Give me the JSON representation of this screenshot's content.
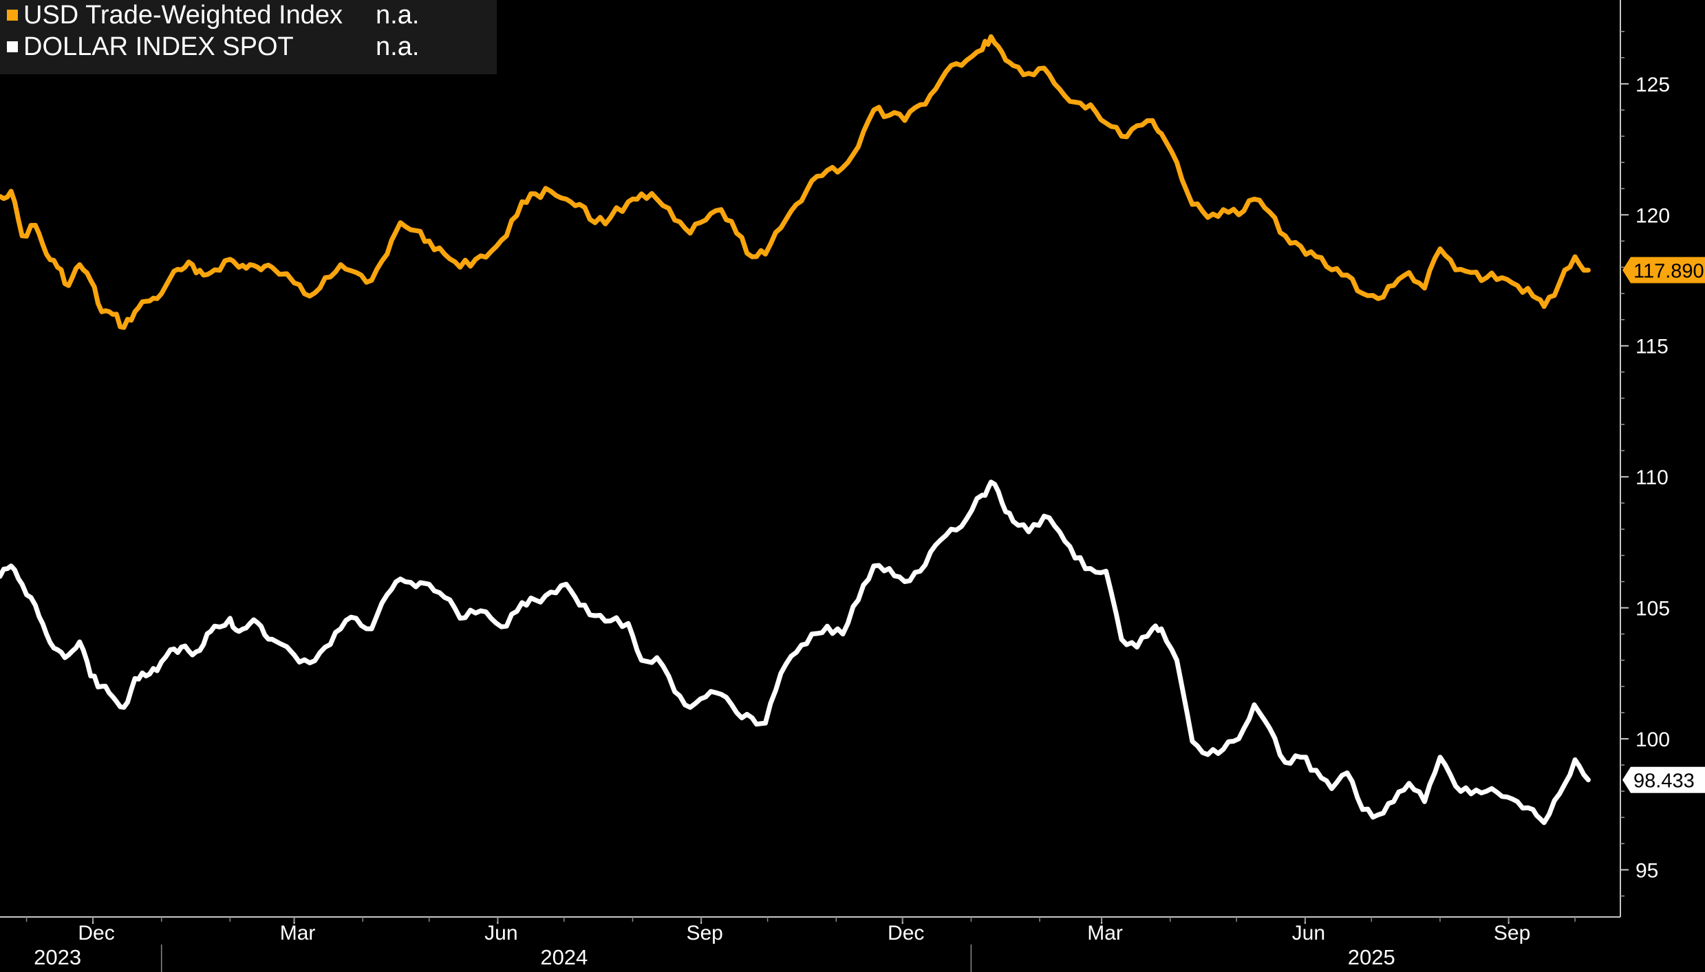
{
  "legend": {
    "items": [
      {
        "label": "USD Trade-Weighted Index",
        "value": "n.a.",
        "color": "#f9a50d"
      },
      {
        "label": "DOLLAR INDEX SPOT",
        "value": "n.a.",
        "color": "#ffffff"
      }
    ]
  },
  "last_value_labels": [
    "117.890",
    "98.433"
  ],
  "chart_data": {
    "type": "line",
    "xlim": [
      "2023-10-20",
      "2025-10-10"
    ],
    "ylim": [
      93.2,
      128.2
    ],
    "y_ticks": [
      95,
      100,
      105,
      110,
      115,
      120,
      125
    ],
    "month_ticks": [
      {
        "label": "Dec",
        "date": "2023-12-01"
      },
      {
        "label": "Mar",
        "date": "2024-03-01"
      },
      {
        "label": "Jun",
        "date": "2024-06-01"
      },
      {
        "label": "Sep",
        "date": "2024-09-01"
      },
      {
        "label": "Dec",
        "date": "2024-12-01"
      },
      {
        "label": "Mar",
        "date": "2025-03-01"
      },
      {
        "label": "Jun",
        "date": "2025-06-01"
      },
      {
        "label": "Sep",
        "date": "2025-09-01"
      }
    ],
    "year_labels": [
      {
        "label": "2023",
        "date": "2023-11-15"
      },
      {
        "label": "2024",
        "date": "2024-07-01"
      },
      {
        "label": "2025",
        "date": "2025-07-01"
      }
    ],
    "year_boundaries": [
      "2024-01-01",
      "2025-01-01"
    ],
    "series": [
      {
        "name": "USD Trade-Weighted Index",
        "color": "#f9a50d",
        "last": 117.89,
        "points": [
          [
            "2023-10-20",
            120.7
          ],
          [
            "2023-10-25",
            120.9
          ],
          [
            "2023-10-30",
            119.2
          ],
          [
            "2023-11-05",
            119.6
          ],
          [
            "2023-11-10",
            118.5
          ],
          [
            "2023-11-15",
            118.0
          ],
          [
            "2023-11-20",
            117.3
          ],
          [
            "2023-11-25",
            118.1
          ],
          [
            "2023-11-30",
            117.5
          ],
          [
            "2023-12-05",
            116.3
          ],
          [
            "2023-12-10",
            116.2
          ],
          [
            "2023-12-15",
            115.7
          ],
          [
            "2023-12-20",
            116.3
          ],
          [
            "2023-12-25",
            116.7
          ],
          [
            "2023-12-30",
            116.8
          ],
          [
            "2024-01-05",
            117.6
          ],
          [
            "2024-01-10",
            117.9
          ],
          [
            "2024-01-15",
            118.1
          ],
          [
            "2024-01-20",
            117.7
          ],
          [
            "2024-01-25",
            117.9
          ],
          [
            "2024-02-01",
            118.3
          ],
          [
            "2024-02-05",
            118.0
          ],
          [
            "2024-02-10",
            118.1
          ],
          [
            "2024-02-15",
            117.9
          ],
          [
            "2024-02-20",
            118.0
          ],
          [
            "2024-03-01",
            117.4
          ],
          [
            "2024-03-08",
            116.9
          ],
          [
            "2024-03-15",
            117.6
          ],
          [
            "2024-03-22",
            118.1
          ],
          [
            "2024-03-29",
            117.8
          ],
          [
            "2024-04-05",
            117.5
          ],
          [
            "2024-04-12",
            118.5
          ],
          [
            "2024-04-18",
            119.7
          ],
          [
            "2024-04-25",
            119.4
          ],
          [
            "2024-05-01",
            119.0
          ],
          [
            "2024-05-08",
            118.5
          ],
          [
            "2024-05-15",
            118.0
          ],
          [
            "2024-05-22",
            118.3
          ],
          [
            "2024-05-29",
            118.6
          ],
          [
            "2024-06-05",
            119.2
          ],
          [
            "2024-06-12",
            120.5
          ],
          [
            "2024-06-18",
            120.8
          ],
          [
            "2024-06-25",
            120.9
          ],
          [
            "2024-07-02",
            120.6
          ],
          [
            "2024-07-08",
            120.4
          ],
          [
            "2024-07-15",
            119.7
          ],
          [
            "2024-07-22",
            119.9
          ],
          [
            "2024-07-30",
            120.5
          ],
          [
            "2024-08-05",
            120.8
          ],
          [
            "2024-08-12",
            120.6
          ],
          [
            "2024-08-20",
            119.8
          ],
          [
            "2024-08-27",
            119.3
          ],
          [
            "2024-09-03",
            119.8
          ],
          [
            "2024-09-10",
            120.2
          ],
          [
            "2024-09-17",
            119.3
          ],
          [
            "2024-09-24",
            118.4
          ],
          [
            "2024-09-30",
            118.5
          ],
          [
            "2024-10-07",
            119.5
          ],
          [
            "2024-10-14",
            120.4
          ],
          [
            "2024-10-21",
            121.3
          ],
          [
            "2024-10-28",
            121.7
          ],
          [
            "2024-11-04",
            121.8
          ],
          [
            "2024-11-11",
            122.6
          ],
          [
            "2024-11-18",
            124.0
          ],
          [
            "2024-11-25",
            123.8
          ],
          [
            "2024-12-02",
            123.6
          ],
          [
            "2024-12-09",
            124.2
          ],
          [
            "2024-12-16",
            124.8
          ],
          [
            "2024-12-23",
            125.7
          ],
          [
            "2024-12-30",
            125.9
          ],
          [
            "2025-01-06",
            126.3
          ],
          [
            "2025-01-10",
            126.8
          ],
          [
            "2025-01-15",
            126.2
          ],
          [
            "2025-01-20",
            125.7
          ],
          [
            "2025-01-27",
            125.4
          ],
          [
            "2025-02-03",
            125.6
          ],
          [
            "2025-02-10",
            124.8
          ],
          [
            "2025-02-17",
            124.3
          ],
          [
            "2025-02-24",
            124.2
          ],
          [
            "2025-03-03",
            123.5
          ],
          [
            "2025-03-10",
            123.0
          ],
          [
            "2025-03-17",
            123.4
          ],
          [
            "2025-03-24",
            123.6
          ],
          [
            "2025-03-28",
            123.1
          ],
          [
            "2025-04-04",
            122.0
          ],
          [
            "2025-04-11",
            120.4
          ],
          [
            "2025-04-18",
            119.9
          ],
          [
            "2025-04-25",
            120.2
          ],
          [
            "2025-05-02",
            120.0
          ],
          [
            "2025-05-09",
            120.6
          ],
          [
            "2025-05-16",
            120.1
          ],
          [
            "2025-05-23",
            119.2
          ],
          [
            "2025-05-30",
            118.8
          ],
          [
            "2025-06-06",
            118.4
          ],
          [
            "2025-06-13",
            117.9
          ],
          [
            "2025-06-20",
            117.7
          ],
          [
            "2025-06-27",
            117.0
          ],
          [
            "2025-07-04",
            116.8
          ],
          [
            "2025-07-11",
            117.3
          ],
          [
            "2025-07-18",
            117.8
          ],
          [
            "2025-07-25",
            117.2
          ],
          [
            "2025-08-01",
            118.7
          ],
          [
            "2025-08-08",
            117.9
          ],
          [
            "2025-08-15",
            117.8
          ],
          [
            "2025-08-22",
            117.6
          ],
          [
            "2025-08-29",
            117.6
          ],
          [
            "2025-09-05",
            117.3
          ],
          [
            "2025-09-12",
            116.9
          ],
          [
            "2025-09-17",
            116.5
          ],
          [
            "2025-09-24",
            117.4
          ],
          [
            "2025-10-01",
            118.4
          ],
          [
            "2025-10-07",
            117.89
          ]
        ]
      },
      {
        "name": "DOLLAR INDEX SPOT",
        "color": "#ffffff",
        "last": 98.433,
        "points": [
          [
            "2023-10-20",
            106.2
          ],
          [
            "2023-10-25",
            106.6
          ],
          [
            "2023-10-30",
            105.9
          ],
          [
            "2023-11-05",
            105.1
          ],
          [
            "2023-11-10",
            104.0
          ],
          [
            "2023-11-15",
            103.4
          ],
          [
            "2023-11-20",
            103.2
          ],
          [
            "2023-11-25",
            103.7
          ],
          [
            "2023-11-30",
            102.4
          ],
          [
            "2023-12-05",
            102.0
          ],
          [
            "2023-12-10",
            101.6
          ],
          [
            "2023-12-15",
            101.2
          ],
          [
            "2023-12-20",
            102.3
          ],
          [
            "2023-12-25",
            102.4
          ],
          [
            "2023-12-30",
            102.6
          ],
          [
            "2024-01-05",
            103.4
          ],
          [
            "2024-01-10",
            103.5
          ],
          [
            "2024-01-15",
            103.2
          ],
          [
            "2024-01-20",
            103.6
          ],
          [
            "2024-01-25",
            104.3
          ],
          [
            "2024-02-01",
            104.6
          ],
          [
            "2024-02-05",
            104.1
          ],
          [
            "2024-02-10",
            104.4
          ],
          [
            "2024-02-15",
            104.3
          ],
          [
            "2024-02-20",
            103.8
          ],
          [
            "2024-03-01",
            103.2
          ],
          [
            "2024-03-08",
            102.9
          ],
          [
            "2024-03-15",
            103.5
          ],
          [
            "2024-03-22",
            104.2
          ],
          [
            "2024-03-29",
            104.6
          ],
          [
            "2024-04-05",
            104.2
          ],
          [
            "2024-04-12",
            105.5
          ],
          [
            "2024-04-18",
            106.1
          ],
          [
            "2024-04-25",
            105.8
          ],
          [
            "2024-05-01",
            105.9
          ],
          [
            "2024-05-08",
            105.4
          ],
          [
            "2024-05-15",
            104.6
          ],
          [
            "2024-05-22",
            104.8
          ],
          [
            "2024-05-29",
            104.6
          ],
          [
            "2024-06-05",
            104.3
          ],
          [
            "2024-06-12",
            105.2
          ],
          [
            "2024-06-18",
            105.3
          ],
          [
            "2024-06-25",
            105.6
          ],
          [
            "2024-07-02",
            105.9
          ],
          [
            "2024-07-08",
            105.1
          ],
          [
            "2024-07-15",
            104.7
          ],
          [
            "2024-07-22",
            104.5
          ],
          [
            "2024-07-30",
            104.4
          ],
          [
            "2024-08-05",
            103.0
          ],
          [
            "2024-08-12",
            103.1
          ],
          [
            "2024-08-20",
            101.8
          ],
          [
            "2024-08-27",
            101.2
          ],
          [
            "2024-09-03",
            101.6
          ],
          [
            "2024-09-10",
            101.7
          ],
          [
            "2024-09-17",
            101.0
          ],
          [
            "2024-09-24",
            100.8
          ],
          [
            "2024-09-30",
            100.6
          ],
          [
            "2024-10-07",
            102.5
          ],
          [
            "2024-10-14",
            103.3
          ],
          [
            "2024-10-21",
            104.0
          ],
          [
            "2024-10-28",
            104.3
          ],
          [
            "2024-11-04",
            104.0
          ],
          [
            "2024-11-11",
            105.3
          ],
          [
            "2024-11-18",
            106.6
          ],
          [
            "2024-11-25",
            106.5
          ],
          [
            "2024-12-02",
            106.0
          ],
          [
            "2024-12-09",
            106.4
          ],
          [
            "2024-12-16",
            107.4
          ],
          [
            "2024-12-23",
            108.0
          ],
          [
            "2024-12-30",
            108.4
          ],
          [
            "2025-01-06",
            109.3
          ],
          [
            "2025-01-10",
            109.8
          ],
          [
            "2025-01-15",
            109.0
          ],
          [
            "2025-01-20",
            108.3
          ],
          [
            "2025-01-27",
            107.9
          ],
          [
            "2025-02-03",
            108.5
          ],
          [
            "2025-02-10",
            107.9
          ],
          [
            "2025-02-17",
            106.9
          ],
          [
            "2025-02-24",
            106.5
          ],
          [
            "2025-03-03",
            106.4
          ],
          [
            "2025-03-10",
            103.8
          ],
          [
            "2025-03-17",
            103.5
          ],
          [
            "2025-03-24",
            104.2
          ],
          [
            "2025-03-28",
            104.2
          ],
          [
            "2025-04-04",
            103.0
          ],
          [
            "2025-04-11",
            99.9
          ],
          [
            "2025-04-18",
            99.4
          ],
          [
            "2025-04-25",
            99.6
          ],
          [
            "2025-05-02",
            100.0
          ],
          [
            "2025-05-09",
            101.3
          ],
          [
            "2025-05-16",
            100.4
          ],
          [
            "2025-05-23",
            99.1
          ],
          [
            "2025-05-30",
            99.3
          ],
          [
            "2025-06-06",
            98.8
          ],
          [
            "2025-06-13",
            98.1
          ],
          [
            "2025-06-20",
            98.7
          ],
          [
            "2025-06-27",
            97.3
          ],
          [
            "2025-07-04",
            97.1
          ],
          [
            "2025-07-11",
            97.6
          ],
          [
            "2025-07-18",
            98.3
          ],
          [
            "2025-07-25",
            97.6
          ],
          [
            "2025-08-01",
            99.3
          ],
          [
            "2025-08-08",
            98.2
          ],
          [
            "2025-08-15",
            97.9
          ],
          [
            "2025-08-22",
            98.0
          ],
          [
            "2025-08-29",
            97.8
          ],
          [
            "2025-09-05",
            97.6
          ],
          [
            "2025-09-12",
            97.3
          ],
          [
            "2025-09-17",
            96.8
          ],
          [
            "2025-09-24",
            97.9
          ],
          [
            "2025-10-01",
            99.2
          ],
          [
            "2025-10-07",
            98.433
          ]
        ]
      }
    ]
  }
}
